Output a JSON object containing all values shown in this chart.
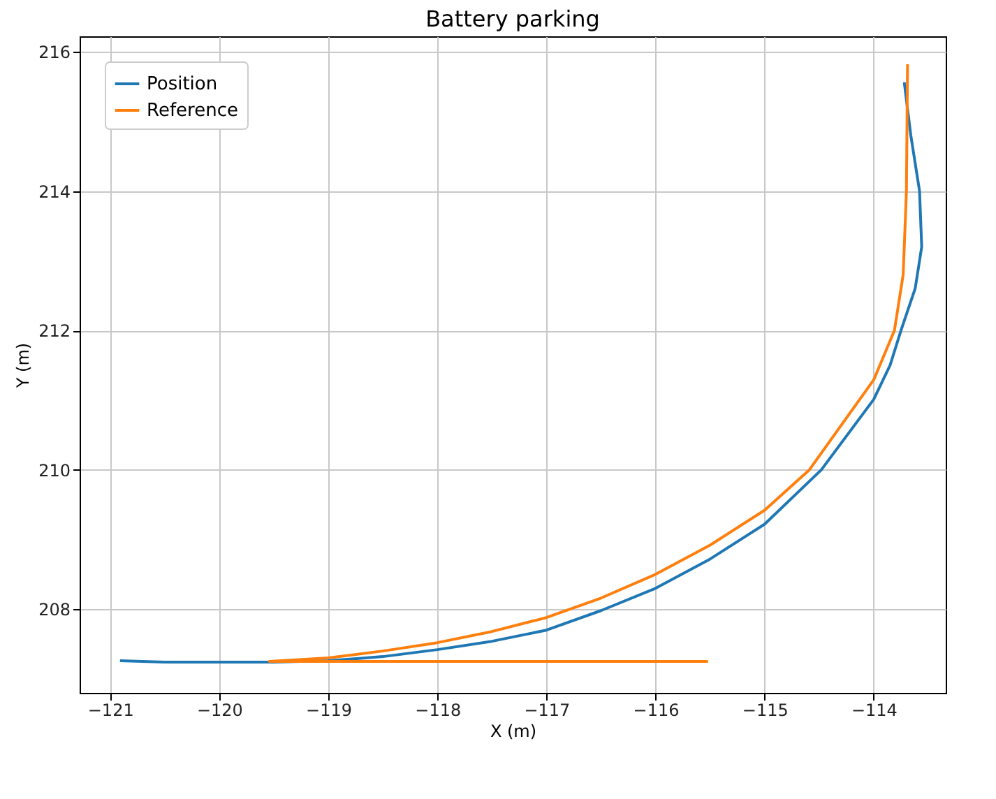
{
  "chart_data": {
    "type": "line",
    "title": "Battery parking",
    "xlabel": "X (m)",
    "ylabel": "Y (m)",
    "xlim": [
      -121.28,
      -113.34
    ],
    "ylim": [
      206.8,
      216.22
    ],
    "xticks": [
      -121,
      -120,
      -119,
      -118,
      -117,
      -116,
      -115,
      -114
    ],
    "yticks": [
      208,
      210,
      212,
      214,
      216
    ],
    "grid": true,
    "legend": "top left",
    "series": [
      {
        "name": "Position",
        "color": "#1f77b4",
        "x": [
          -120.91,
          -120.5,
          -120,
          -119.5,
          -119,
          -118.5,
          -118,
          -117.5,
          -117,
          -116.5,
          -116,
          -115.5,
          -115,
          -114.48,
          -114,
          -113.85,
          -113.75,
          -113.62,
          -113.56,
          -113.58,
          -113.66,
          -113.72
        ],
        "values": [
          207.26,
          207.24,
          207.24,
          207.24,
          207.26,
          207.32,
          207.42,
          207.54,
          207.7,
          207.98,
          208.3,
          208.72,
          209.22,
          210,
          211.01,
          211.5,
          212,
          212.6,
          213.2,
          214,
          214.8,
          215.56
        ]
      },
      {
        "name": "Reference",
        "color": "#ff7f0e",
        "x": [
          -115.52,
          -119.54,
          -119,
          -118.5,
          -118,
          -117.5,
          -117,
          -116.5,
          -116,
          -115.5,
          -115,
          -114.59,
          -114,
          -113.81,
          -113.73,
          -113.7,
          -113.69
        ],
        "values": [
          207.25,
          207.25,
          207.3,
          207.4,
          207.52,
          207.68,
          207.88,
          208.16,
          208.5,
          208.92,
          209.42,
          210,
          211.29,
          212,
          212.8,
          214,
          215.82
        ]
      }
    ]
  }
}
